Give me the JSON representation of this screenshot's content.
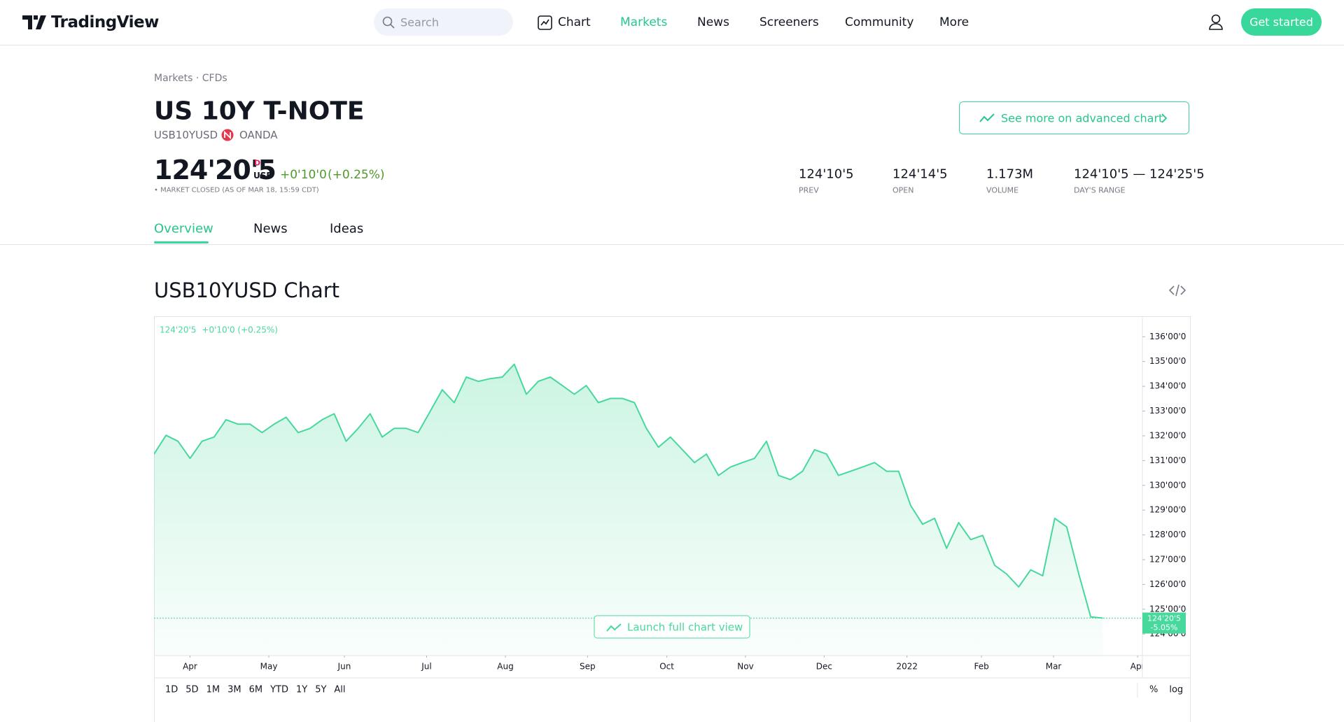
{
  "header": {
    "logo": "TradingView",
    "search": "Search",
    "nav": [
      "Chart",
      "Markets",
      "News",
      "Screeners",
      "Community",
      "More"
    ],
    "cta": "Get started"
  },
  "symbol": {
    "breadcrumb": "Markets · CFDs",
    "name": "US 10Y T-NOTE",
    "ticker": "USB10YUSD",
    "exchange": "OANDA",
    "advanced": "See more on advanced chart",
    "price": "124'20'5",
    "price_flag": "D",
    "currency": "USD",
    "change": "+0'10'0",
    "change_pct": "(+0.25%)",
    "status": "• MARKET CLOSED (AS OF MAR 18, 15:59 CDT)",
    "stats": [
      {
        "value": "124'10'5",
        "label": "PREV"
      },
      {
        "value": "124'14'5",
        "label": "OPEN"
      },
      {
        "value": "1.173M",
        "label": "VOLUME"
      },
      {
        "value": "124'10'5 — 124'25'5",
        "label": "DAY'S RANGE"
      }
    ]
  },
  "tabs": [
    "Overview",
    "News",
    "Ideas"
  ],
  "chart_heading": "USB10YUSD Chart",
  "chart_data": {
    "type": "line",
    "color": "#47d99b",
    "legend_price": "124'20'5",
    "legend_change": "+0'10'0 (+0.25%)",
    "launch": "Launch full chart view",
    "values": [
      131.26,
      132.02,
      131.78,
      131.09,
      131.78,
      131.95,
      132.65,
      132.47,
      132.47,
      132.13,
      132.47,
      132.75,
      132.13,
      132.3,
      132.65,
      132.89,
      131.78,
      132.3,
      132.89,
      131.95,
      132.3,
      132.3,
      132.13,
      132.99,
      133.86,
      133.34,
      134.37,
      134.2,
      134.31,
      134.37,
      134.89,
      133.68,
      134.2,
      134.37,
      134.03,
      133.68,
      134.03,
      133.34,
      133.51,
      133.51,
      133.34,
      132.3,
      131.54,
      131.95,
      131.44,
      130.92,
      131.26,
      130.4,
      130.74,
      130.92,
      131.09,
      131.78,
      130.4,
      130.23,
      130.57,
      131.44,
      131.26,
      130.4,
      130.57,
      130.74,
      130.92,
      130.57,
      130.57,
      129.19,
      128.43,
      128.67,
      127.46,
      128.5,
      127.81,
      127.98,
      126.77,
      126.42,
      125.9,
      126.59,
      126.35,
      128.67,
      128.32,
      126.42,
      124.69,
      124.64
    ],
    "xlim": [
      0,
      82.3
    ],
    "xticks": [
      {
        "value": 3.0,
        "label": "Apr"
      },
      {
        "value": 9.56,
        "label": "May"
      },
      {
        "value": 15.85,
        "label": "Jun"
      },
      {
        "value": 22.7,
        "label": "Jul"
      },
      {
        "value": 29.26,
        "label": "Aug"
      },
      {
        "value": 36.1,
        "label": "Sep"
      },
      {
        "value": 42.7,
        "label": "Oct"
      },
      {
        "value": 49.25,
        "label": "Nov"
      },
      {
        "value": 55.8,
        "label": "Dec"
      },
      {
        "value": 62.7,
        "label": "2022"
      },
      {
        "value": 68.9,
        "label": "Feb"
      },
      {
        "value": 74.9,
        "label": "Mar"
      },
      {
        "value": 81.9,
        "label": "Apr"
      }
    ],
    "ylim": [
      123.13,
      136.8
    ],
    "yticks": [
      {
        "value": 124,
        "label": "124'00'0"
      },
      {
        "value": 125,
        "label": "125'00'0"
      },
      {
        "value": 126,
        "label": "126'00'0"
      },
      {
        "value": 127,
        "label": "127'00'0"
      },
      {
        "value": 128,
        "label": "128'00'0"
      },
      {
        "value": 129,
        "label": "129'00'0"
      },
      {
        "value": 130,
        "label": "130'00'0"
      },
      {
        "value": 131,
        "label": "131'00'0"
      },
      {
        "value": 132,
        "label": "132'00'0"
      },
      {
        "value": 133,
        "label": "133'00'0"
      },
      {
        "value": 134,
        "label": "134'00'0"
      },
      {
        "value": 135,
        "label": "135'00'0"
      },
      {
        "value": 136,
        "label": "136'00'0"
      }
    ],
    "last_price": {
      "value": 124.64,
      "label": "124'20'5"
    },
    "last_change": "-5.05%",
    "ranges": [
      "1D",
      "5D",
      "1M",
      "3M",
      "6M",
      "YTD",
      "1Y",
      "5Y",
      "All"
    ],
    "scale_options": [
      "%",
      "log"
    ]
  }
}
